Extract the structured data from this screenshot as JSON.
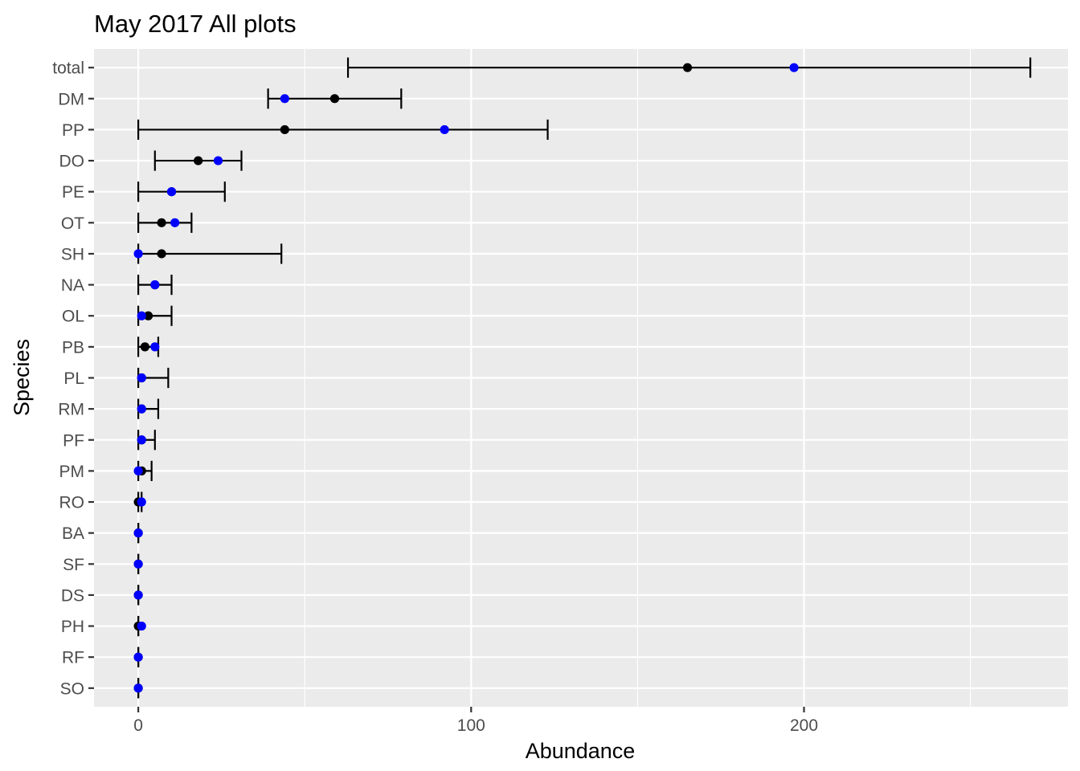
{
  "chart_data": {
    "type": "scatter",
    "title": "May 2017 All plots",
    "xlabel": "Abundance",
    "ylabel": "Species",
    "xlim": [
      -13.3,
      279.3
    ],
    "xticks": [
      0,
      100,
      200
    ],
    "x_minor_ticks": [
      50,
      150,
      250
    ],
    "categories": [
      "total",
      "DM",
      "PP",
      "DO",
      "PE",
      "OT",
      "SH",
      "NA",
      "OL",
      "PB",
      "PL",
      "RM",
      "PF",
      "PM",
      "RO",
      "BA",
      "SF",
      "DS",
      "PH",
      "RF",
      "SO"
    ],
    "grid": true,
    "legend": "none",
    "series": [
      {
        "color": "#000000",
        "values": [
          165,
          59,
          44,
          18,
          10,
          7,
          7,
          5,
          3,
          2,
          1,
          1,
          1,
          1,
          0,
          0,
          0,
          0,
          0,
          0,
          0
        ],
        "lower": [
          63,
          39,
          0,
          5,
          0,
          0,
          0,
          0,
          0,
          0,
          0,
          0,
          0,
          0,
          0,
          0,
          0,
          0,
          0,
          0,
          0
        ],
        "upper": [
          268,
          79,
          123,
          31,
          26,
          16,
          43,
          10,
          10,
          6,
          9,
          6,
          5,
          4,
          1,
          0,
          0,
          0,
          0,
          0,
          0
        ]
      },
      {
        "color": "#0000ff",
        "values": [
          197,
          44,
          92,
          24,
          10,
          11,
          0,
          5,
          1,
          5,
          1,
          1,
          1,
          0,
          1,
          0,
          0,
          0,
          1,
          0,
          0
        ]
      }
    ]
  },
  "colors": {
    "panel_background": "#ebebeb",
    "grid": "#ffffff",
    "tick": "#333333"
  }
}
